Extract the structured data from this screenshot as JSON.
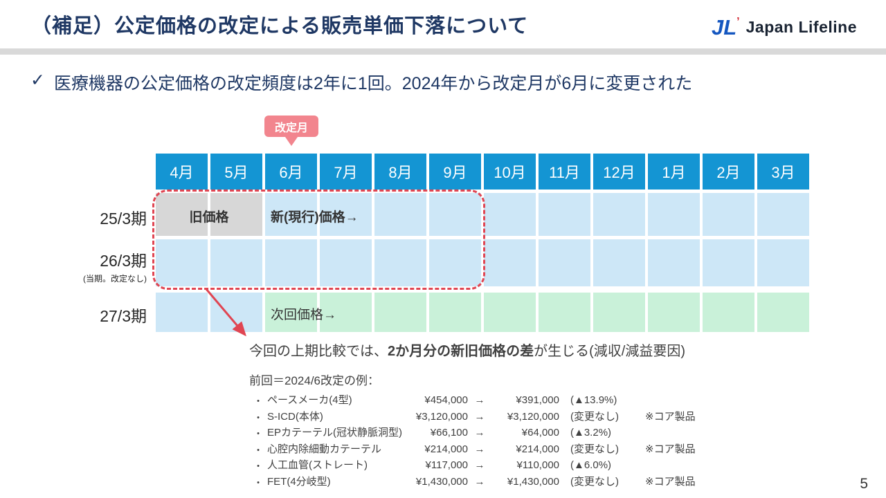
{
  "slide": {
    "title": "（補足）公定価格の改定による販売単価下落について",
    "page_number": "5"
  },
  "logo": {
    "mark": "JL",
    "mark_tick": "’",
    "name": "Japan Lifeline"
  },
  "key_point": {
    "check": "✓",
    "text": "医療機器の公定価格の改定頻度は2年に1回。2024年から改定月が6月に変更された"
  },
  "calendar": {
    "badge": "改定月",
    "months": [
      "4月",
      "5月",
      "6月",
      "7月",
      "8月",
      "9月",
      "10月",
      "11月",
      "12月",
      "1月",
      "2月",
      "3月"
    ],
    "rows": [
      {
        "label": "25/3期",
        "sublabel": "",
        "cells": [
          "gray",
          "gray",
          "blue",
          "blue",
          "blue",
          "blue",
          "blue",
          "blue",
          "blue",
          "blue",
          "blue",
          "blue"
        ]
      },
      {
        "label": "26/3期",
        "sublabel": "(当期。改定なし)",
        "cells": [
          "blue",
          "blue",
          "blue",
          "blue",
          "blue",
          "blue",
          "blue",
          "blue",
          "blue",
          "blue",
          "blue",
          "blue"
        ]
      },
      {
        "label": "27/3期",
        "sublabel": "",
        "cells": [
          "blue",
          "blue",
          "green",
          "green",
          "green",
          "green",
          "green",
          "green",
          "green",
          "green",
          "green",
          "green"
        ]
      }
    ],
    "labels": {
      "old_price": "旧価格",
      "new_price": "新(現行)価格→",
      "next_price": "次回価格→"
    }
  },
  "annotation": {
    "prefix": "今回の上期比較では、",
    "bold": "2か月分の新旧価格の差",
    "suffix": "が生じる(減収/減益要因)"
  },
  "examples": {
    "heading": "前回＝2024/6改定の例：",
    "bullet": "•",
    "items": [
      {
        "name": "ペースメーカ(4型)",
        "old": "¥454,000",
        "arrow": "→",
        "new": "¥391,000",
        "change": "(▲13.9%)",
        "note": ""
      },
      {
        "name": "S-ICD(本体)",
        "old": "¥3,120,000",
        "arrow": "→",
        "new": "¥3,120,000",
        "change": "(変更なし)",
        "note": "※コア製品"
      },
      {
        "name": "EPカテーテル(冠状静脈洞型)",
        "old": "¥66,100",
        "arrow": "→",
        "new": "¥64,000",
        "change": "(▲3.2%)",
        "note": ""
      },
      {
        "name": "心腔内除細動カテーテル",
        "old": "¥214,000",
        "arrow": "→",
        "new": "¥214,000",
        "change": "(変更なし)",
        "note": "※コア製品"
      },
      {
        "name": "人工血管(ストレート)",
        "old": "¥117,000",
        "arrow": "→",
        "new": "¥110,000",
        "change": "(▲6.0%)",
        "note": ""
      },
      {
        "name": "FET(4分岐型)",
        "old": "¥1,430,000",
        "arrow": "→",
        "new": "¥1,430,000",
        "change": "(変更なし)",
        "note": "※コア製品"
      }
    ]
  },
  "colors": {
    "header_blue": "#1495d3",
    "cell_blue": "#cde7f7",
    "cell_green": "#c9f1d9",
    "cell_gray": "#d7d7d7",
    "badge_pink": "#f2858e",
    "accent_red": "#e04552",
    "title_navy": "#1f3864"
  }
}
